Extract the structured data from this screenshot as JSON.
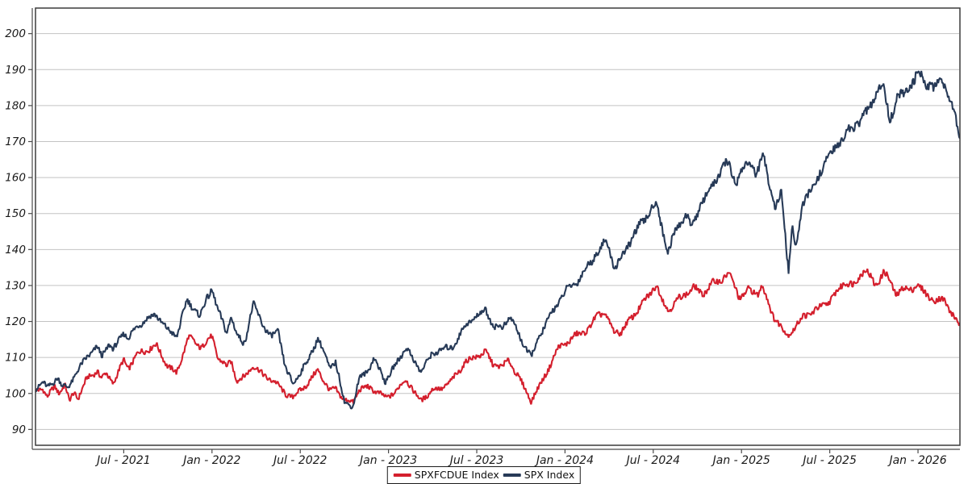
{
  "chart_data": {
    "type": "line",
    "title": "",
    "xlabel": "",
    "ylabel": "",
    "grid": "horizontal",
    "x_axis": {
      "unit": "months-since-2021-01",
      "range_months": [
        0,
        62.85
      ],
      "tick_months": [
        6,
        12,
        18,
        24,
        30,
        36,
        42,
        48,
        54,
        60
      ],
      "tick_labels": [
        "Jul - 2021",
        "Jan - 2022",
        "Jul - 2022",
        "Jan - 2023",
        "Jul - 2023",
        "Jan - 2024",
        "Jul - 2024",
        "Jan - 2025",
        "Jul - 2025",
        "Jan - 2026"
      ]
    },
    "y_axis": {
      "ticks": [
        90,
        100,
        110,
        120,
        130,
        140,
        150,
        160,
        170,
        180,
        190,
        200
      ],
      "range": [
        85.6,
        207.1
      ]
    },
    "legend": {
      "position": "bottom-center",
      "bordered": true
    },
    "style": {
      "grid_color": "#c3c3c3",
      "box_color": "#3b3b3b",
      "spine_color": "#4a4a4a",
      "line_width": 2.1,
      "jitter_amplitude": 1.0
    },
    "series": [
      {
        "name": "SPXFCDUE Index",
        "color": "#d41f2d",
        "keypoints": [
          [
            0,
            100.6
          ],
          [
            0.5,
            101.5
          ],
          [
            0.8,
            99.0
          ],
          [
            1.3,
            101.8
          ],
          [
            1.6,
            100.3
          ],
          [
            2.0,
            102.5
          ],
          [
            2.3,
            97.7
          ],
          [
            2.6,
            100.3
          ],
          [
            2.9,
            98.8
          ],
          [
            3.5,
            104.1
          ],
          [
            4.2,
            106.3
          ],
          [
            4.5,
            104.1
          ],
          [
            4.8,
            105.6
          ],
          [
            5.3,
            102.9
          ],
          [
            6.0,
            109.2
          ],
          [
            6.3,
            107.0
          ],
          [
            7.0,
            111.3
          ],
          [
            7.8,
            112.5
          ],
          [
            8.2,
            113.5
          ],
          [
            9.0,
            107.5
          ],
          [
            9.6,
            105.6
          ],
          [
            10.4,
            115.7
          ],
          [
            11.0,
            113.5
          ],
          [
            11.3,
            113.0
          ],
          [
            12.0,
            115.9
          ],
          [
            12.4,
            110.0
          ],
          [
            13.0,
            107.4
          ],
          [
            13.3,
            109.0
          ],
          [
            13.7,
            103.6
          ],
          [
            14.2,
            104.5
          ],
          [
            14.8,
            107.9
          ],
          [
            15.5,
            105.0
          ],
          [
            16.2,
            103.5
          ],
          [
            17.0,
            100.0
          ],
          [
            17.5,
            98.8
          ],
          [
            18.0,
            101.0
          ],
          [
            18.6,
            103.0
          ],
          [
            19.2,
            106.7
          ],
          [
            20.0,
            100.5
          ],
          [
            20.4,
            101.5
          ],
          [
            21.0,
            98.0
          ],
          [
            21.6,
            97.7
          ],
          [
            22.0,
            101.0
          ],
          [
            22.6,
            101.8
          ],
          [
            23.0,
            101.0
          ],
          [
            23.8,
            98.8
          ],
          [
            24.5,
            100.5
          ],
          [
            25.2,
            104.1
          ],
          [
            25.8,
            100.0
          ],
          [
            26.2,
            98.0
          ],
          [
            27.0,
            101.0
          ],
          [
            27.6,
            101.4
          ],
          [
            28.3,
            103.5
          ],
          [
            29.2,
            108.6
          ],
          [
            29.8,
            110.0
          ],
          [
            30.6,
            111.5
          ],
          [
            31.1,
            108.2
          ],
          [
            31.7,
            107.4
          ],
          [
            32.2,
            109.2
          ],
          [
            33.0,
            103.4
          ],
          [
            33.7,
            98.0
          ],
          [
            34.4,
            103.0
          ],
          [
            35.0,
            108.0
          ],
          [
            35.6,
            113.0
          ],
          [
            36.3,
            114.5
          ],
          [
            36.8,
            116.4
          ],
          [
            37.6,
            117.6
          ],
          [
            38.2,
            122.0
          ],
          [
            38.6,
            122.5
          ],
          [
            39.3,
            117.5
          ],
          [
            39.8,
            116.9
          ],
          [
            40.5,
            121.0
          ],
          [
            41.3,
            125.0
          ],
          [
            42.2,
            130.3
          ],
          [
            42.6,
            126.0
          ],
          [
            43.0,
            123.2
          ],
          [
            43.8,
            126.5
          ],
          [
            44.8,
            129.5
          ],
          [
            45.3,
            127.5
          ],
          [
            46.0,
            130.5
          ],
          [
            46.6,
            131.5
          ],
          [
            47.1,
            133.5
          ],
          [
            47.9,
            126.5
          ],
          [
            48.5,
            128.8
          ],
          [
            49.1,
            127.7
          ],
          [
            49.4,
            130.0
          ],
          [
            50.1,
            122.0
          ],
          [
            50.6,
            119.1
          ],
          [
            51.1,
            116.0
          ],
          [
            51.7,
            118.7
          ],
          [
            52.2,
            121.4
          ],
          [
            53.0,
            123.0
          ],
          [
            53.5,
            124.3
          ],
          [
            54.2,
            126.5
          ],
          [
            55.0,
            131.1
          ],
          [
            55.6,
            130.0
          ],
          [
            56.4,
            134.9
          ],
          [
            57.1,
            129.9
          ],
          [
            57.7,
            134.0
          ],
          [
            58.5,
            127.7
          ],
          [
            59.0,
            129.2
          ],
          [
            59.4,
            128.5
          ],
          [
            59.9,
            130.4
          ],
          [
            60.5,
            127.7
          ],
          [
            61.0,
            126.1
          ],
          [
            61.8,
            125.9
          ],
          [
            62.4,
            121.6
          ],
          [
            62.85,
            118.7
          ]
        ]
      },
      {
        "name": "SPX Index",
        "color": "#273a57",
        "keypoints": [
          [
            0,
            101.5
          ],
          [
            0.5,
            103.0
          ],
          [
            0.8,
            101.5
          ],
          [
            1.5,
            104.5
          ],
          [
            1.8,
            102.0
          ],
          [
            2.2,
            101.8
          ],
          [
            3.0,
            107.0
          ],
          [
            3.5,
            110.4
          ],
          [
            4.2,
            112.7
          ],
          [
            4.5,
            110.4
          ],
          [
            5.0,
            113.8
          ],
          [
            5.3,
            112.0
          ],
          [
            6.0,
            117.1
          ],
          [
            6.3,
            115.3
          ],
          [
            7.0,
            119.1
          ],
          [
            7.5,
            120.5
          ],
          [
            8.2,
            122.0
          ],
          [
            9.0,
            117.5
          ],
          [
            9.6,
            116.0
          ],
          [
            10.3,
            125.9
          ],
          [
            10.8,
            123.5
          ],
          [
            11.2,
            121.4
          ],
          [
            11.6,
            126.0
          ],
          [
            12.0,
            129.2
          ],
          [
            12.4,
            123.0
          ],
          [
            13.0,
            117.0
          ],
          [
            13.3,
            121.5
          ],
          [
            13.7,
            116.0
          ],
          [
            14.2,
            114.0
          ],
          [
            14.8,
            124.7
          ],
          [
            15.5,
            119.0
          ],
          [
            16.0,
            115.5
          ],
          [
            16.5,
            117.5
          ],
          [
            17.0,
            107.0
          ],
          [
            17.5,
            102.5
          ],
          [
            18.0,
            106.0
          ],
          [
            18.6,
            109.5
          ],
          [
            19.2,
            115.7
          ],
          [
            20.0,
            107.0
          ],
          [
            20.4,
            109.0
          ],
          [
            21.0,
            97.5
          ],
          [
            21.6,
            96.6
          ],
          [
            22.0,
            104.0
          ],
          [
            22.6,
            106.5
          ],
          [
            23.0,
            109.7
          ],
          [
            23.8,
            103.4
          ],
          [
            24.5,
            108.0
          ],
          [
            25.2,
            113.0
          ],
          [
            25.8,
            108.5
          ],
          [
            26.2,
            106.3
          ],
          [
            27.0,
            111.0
          ],
          [
            27.6,
            112.3
          ],
          [
            28.3,
            112.6
          ],
          [
            29.2,
            118.7
          ],
          [
            29.8,
            121.0
          ],
          [
            30.6,
            123.2
          ],
          [
            31.2,
            118.5
          ],
          [
            31.7,
            118.2
          ],
          [
            32.3,
            121.4
          ],
          [
            33.0,
            115.0
          ],
          [
            33.7,
            110.2
          ],
          [
            34.5,
            118.0
          ],
          [
            35.2,
            123.0
          ],
          [
            36.0,
            128.4
          ],
          [
            36.8,
            131.0
          ],
          [
            37.5,
            135.0
          ],
          [
            38.3,
            140.0
          ],
          [
            38.8,
            142.3
          ],
          [
            39.4,
            134.8
          ],
          [
            40.0,
            139.0
          ],
          [
            40.8,
            145.0
          ],
          [
            41.5,
            149.0
          ],
          [
            42.2,
            153.1
          ],
          [
            42.6,
            146.0
          ],
          [
            43.0,
            139.3
          ],
          [
            43.6,
            146.0
          ],
          [
            44.2,
            149.7
          ],
          [
            44.6,
            146.5
          ],
          [
            45.3,
            153.0
          ],
          [
            45.9,
            157.0
          ],
          [
            46.6,
            161.8
          ],
          [
            47.1,
            164.4
          ],
          [
            47.6,
            158.5
          ],
          [
            48.2,
            163.0
          ],
          [
            48.6,
            164.8
          ],
          [
            49.0,
            160.5
          ],
          [
            49.5,
            165.9
          ],
          [
            50.0,
            157.0
          ],
          [
            50.3,
            151.0
          ],
          [
            50.7,
            155.8
          ],
          [
            51.0,
            143.0
          ],
          [
            51.2,
            133.8
          ],
          [
            51.45,
            147.0
          ],
          [
            51.65,
            139.4
          ],
          [
            52.2,
            153.6
          ],
          [
            52.9,
            157.0
          ],
          [
            53.4,
            162.2
          ],
          [
            54.0,
            166.3
          ],
          [
            54.7,
            170.0
          ],
          [
            55.3,
            173.1
          ],
          [
            56.0,
            175.5
          ],
          [
            56.5,
            178.0
          ],
          [
            57.0,
            182.0
          ],
          [
            57.6,
            185.7
          ],
          [
            58.1,
            176.5
          ],
          [
            58.6,
            182.0
          ],
          [
            59.2,
            184.0
          ],
          [
            59.7,
            186.5
          ],
          [
            60.1,
            188.9
          ],
          [
            60.7,
            186.0
          ],
          [
            61.1,
            184.4
          ],
          [
            61.5,
            188.4
          ],
          [
            62.0,
            184.0
          ],
          [
            62.3,
            179.9
          ],
          [
            62.5,
            177.9
          ],
          [
            62.85,
            171.6
          ]
        ]
      }
    ]
  },
  "legend": {
    "items": [
      {
        "label": "SPXFCDUE Index"
      },
      {
        "label": "SPX Index"
      }
    ]
  }
}
